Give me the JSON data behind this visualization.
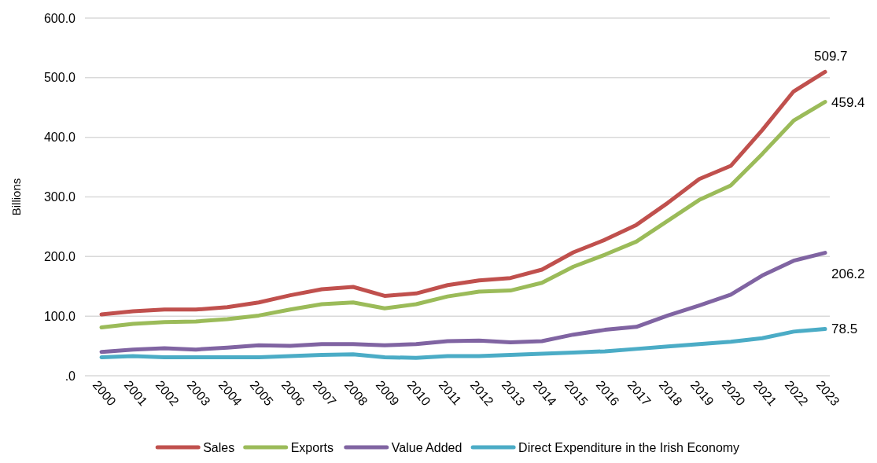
{
  "chart_data": {
    "type": "line",
    "ylabel": "Billions",
    "categories": [
      "2000",
      "2001",
      "2002",
      "2003",
      "2004",
      "2005",
      "2006",
      "2007",
      "2008",
      "2009",
      "2010",
      "2011",
      "2012",
      "2013",
      "2014",
      "2015",
      "2016",
      "2017",
      "2018",
      "2019",
      "2020",
      "2021",
      "2022",
      "2023"
    ],
    "ylim": [
      0,
      600
    ],
    "yticks": [
      {
        "value": 0,
        "label": ".0"
      },
      {
        "value": 100,
        "label": "100.0"
      },
      {
        "value": 200,
        "label": "200.0"
      },
      {
        "value": 300,
        "label": "300.0"
      },
      {
        "value": 400,
        "label": "400.0"
      },
      {
        "value": 500,
        "label": "500.0"
      },
      {
        "value": 600,
        "label": "600.0"
      }
    ],
    "grid": "y",
    "legend": "bottom",
    "series": [
      {
        "name": "Sales",
        "color": "#c0504d",
        "values": [
          103,
          108,
          111,
          111,
          115,
          123,
          135,
          145,
          149,
          134,
          138,
          152,
          160,
          164,
          178,
          207,
          228,
          253,
          290,
          330,
          352,
          412,
          477,
          509.7
        ],
        "value_labels": [
          null,
          null,
          null,
          null,
          null,
          null,
          null,
          null,
          null,
          null,
          null,
          null,
          null,
          null,
          null,
          null,
          null,
          null,
          null,
          null,
          null,
          null,
          null,
          "509.7"
        ]
      },
      {
        "name": "Exports",
        "color": "#9bbb59",
        "values": [
          81,
          87,
          90,
          91,
          95,
          101,
          111,
          120,
          123,
          113,
          120,
          133,
          141,
          143,
          156,
          183,
          203,
          225,
          260,
          295,
          319,
          372,
          428,
          459.4
        ],
        "value_labels": [
          null,
          null,
          null,
          null,
          null,
          null,
          null,
          null,
          null,
          null,
          null,
          null,
          null,
          null,
          null,
          null,
          null,
          null,
          null,
          null,
          null,
          null,
          null,
          "459.4"
        ]
      },
      {
        "name": "Value Added",
        "color": "#8064a2",
        "values": [
          40,
          44,
          46,
          44,
          47,
          51,
          50,
          53,
          53,
          51,
          53,
          58,
          59,
          56,
          58,
          69,
          77,
          82,
          101,
          118,
          136,
          168,
          193,
          206.2
        ],
        "value_labels": [
          null,
          null,
          null,
          null,
          null,
          null,
          null,
          null,
          null,
          null,
          null,
          null,
          null,
          null,
          null,
          null,
          null,
          null,
          null,
          null,
          null,
          null,
          null,
          "206.2"
        ]
      },
      {
        "name": "Direct Expenditure in the Irish Economy",
        "color": "#4bacc6",
        "values": [
          31,
          33,
          31,
          31,
          31,
          31,
          33,
          35,
          36,
          31,
          30,
          33,
          33,
          35,
          37,
          39,
          41,
          45,
          49,
          53,
          57,
          63,
          74,
          78.5
        ],
        "value_labels": [
          null,
          null,
          null,
          null,
          null,
          null,
          null,
          null,
          null,
          null,
          null,
          null,
          null,
          null,
          null,
          null,
          null,
          null,
          null,
          null,
          null,
          null,
          null,
          "78.5"
        ]
      }
    ]
  }
}
